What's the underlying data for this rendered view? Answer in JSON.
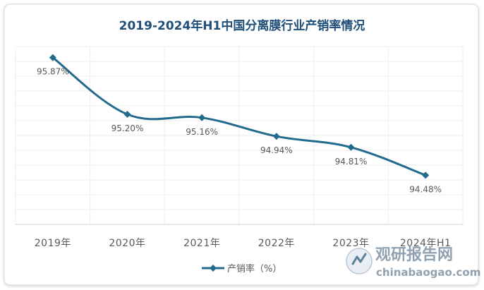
{
  "chart_data": {
    "type": "line",
    "title": "2019-2024年H1中国分离膜行业产销率情况",
    "categories": [
      "2019年",
      "2020年",
      "2021年",
      "2022年",
      "2023年",
      "2024年H1"
    ],
    "series": [
      {
        "name": "产销率（%）",
        "values": [
          95.87,
          95.2,
          95.16,
          94.94,
          94.81,
          94.48
        ],
        "labels": [
          "95.87%",
          "95.20%",
          "95.16%",
          "94.94%",
          "94.81%",
          "94.48%"
        ]
      }
    ],
    "ylim": [
      93.9,
      96.0
    ],
    "grid": true,
    "legend": "bottom",
    "colors": {
      "line": "#236B8E",
      "grid": "#EDEDED",
      "text": "#595959",
      "title": "#1F4E79"
    }
  },
  "watermark": {
    "brand": "观研报告网",
    "url": "chinabaogao.com"
  }
}
